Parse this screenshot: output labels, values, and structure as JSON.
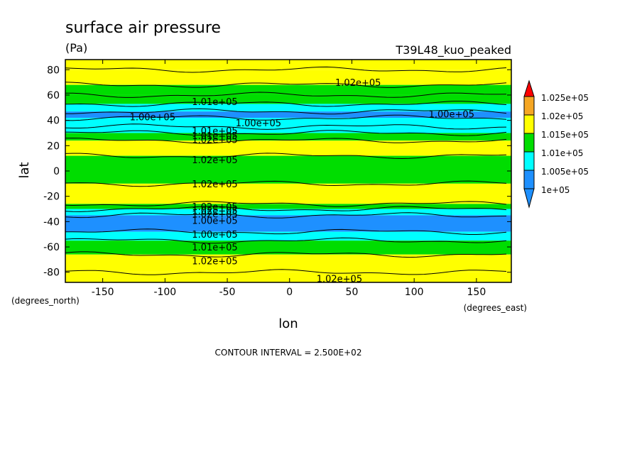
{
  "chart_data": {
    "type": "heatmap",
    "title": "surface air pressure",
    "units": "(Pa)",
    "run_label": "T39L48_kuo_peaked",
    "xlabel": "lon",
    "ylabel": "lat",
    "x_units": "(degrees_east)",
    "y_units": "(degrees_north)",
    "xlim": [
      -180,
      178
    ],
    "ylim": [
      -88,
      88
    ],
    "x_ticks": [
      -150,
      -100,
      -50,
      0,
      50,
      100,
      150
    ],
    "y_ticks": [
      80,
      60,
      40,
      20,
      0,
      -20,
      -40,
      -60,
      -80
    ],
    "x_tick_labels": [
      "-150",
      "-100",
      "-50",
      "0",
      "50",
      "100",
      "150"
    ],
    "y_tick_labels": [
      "80",
      "60",
      "40",
      "20",
      "0",
      "-20",
      "-40",
      "-60",
      "-80"
    ],
    "contour_interval_text": "CONTOUR INTERVAL = 2.500E+02",
    "colorbar": {
      "labels": [
        "1.025e+05",
        "1.02e+05",
        "1.015e+05",
        "1.01e+05",
        "1.005e+05",
        "1e+05"
      ],
      "colors": [
        "#f5a623",
        "#ffff00",
        "#00dd00",
        "#00ffff",
        "#1e90ff"
      ],
      "over_color": "#ff0000",
      "under_color": "#1e90ff"
    },
    "bands": [
      {
        "lat": 88,
        "dx": 0,
        "color": "#ffff00"
      },
      {
        "lat": 80,
        "dx": 0,
        "color": "#ffff00"
      },
      {
        "lat": 68,
        "dx": 0,
        "color": "#00dd00"
      },
      {
        "lat": 60,
        "dx": 0,
        "color": "#00dd00"
      },
      {
        "lat": 53,
        "dx": 0,
        "color": "#00ffff"
      },
      {
        "lat": 47,
        "dx": 0,
        "color": "#1e90ff"
      },
      {
        "lat": 42,
        "dx": 0,
        "color": "#00ffff"
      },
      {
        "lat": 35,
        "dx": 0,
        "color": "#00ffff"
      },
      {
        "lat": 30,
        "dx": 0,
        "color": "#00dd00"
      },
      {
        "lat": 24,
        "dx": 0,
        "color": "#ffff00"
      },
      {
        "lat": 12,
        "dx": 0,
        "color": "#00dd00"
      },
      {
        "lat": -10,
        "dx": 0,
        "color": "#ffff00"
      },
      {
        "lat": -26,
        "dx": 0,
        "color": "#00dd00"
      },
      {
        "lat": -30,
        "dx": 0,
        "color": "#00ffff"
      },
      {
        "lat": -35,
        "dx": 0,
        "color": "#1e90ff"
      },
      {
        "lat": -48,
        "dx": 0,
        "color": "#00ffff"
      },
      {
        "lat": -55,
        "dx": 0,
        "color": "#00dd00"
      },
      {
        "lat": -66,
        "dx": 0,
        "color": "#ffff00"
      },
      {
        "lat": -80,
        "dx": 0,
        "color": "#ffff00"
      }
    ],
    "contour_labels": [
      {
        "text": "1.02e+05",
        "lon": 55,
        "lat": 70
      },
      {
        "text": "1.01e+05",
        "lon": -60,
        "lat": 55
      },
      {
        "text": "1.00e+05",
        "lon": -110,
        "lat": 43
      },
      {
        "text": "1.00e+05",
        "lon": -25,
        "lat": 38
      },
      {
        "text": "1.00e+05",
        "lon": 130,
        "lat": 45
      },
      {
        "text": "1.01e+05",
        "lon": -60,
        "lat": 32
      },
      {
        "text": "1.01e+05",
        "lon": -60,
        "lat": 28
      },
      {
        "text": "1.02e+05",
        "lon": -60,
        "lat": 25
      },
      {
        "text": "1.02e+05",
        "lon": -60,
        "lat": 9
      },
      {
        "text": "1.02e+05",
        "lon": -60,
        "lat": -10
      },
      {
        "text": "1.02e+05",
        "lon": -60,
        "lat": -28
      },
      {
        "text": "1.02e+05",
        "lon": -60,
        "lat": -31
      },
      {
        "text": "1.02e+05",
        "lon": -60,
        "lat": -34
      },
      {
        "text": "1.00e+05",
        "lon": -60,
        "lat": -39
      },
      {
        "text": "1.00e+05",
        "lon": -60,
        "lat": -50
      },
      {
        "text": "1.01e+05",
        "lon": -60,
        "lat": -60
      },
      {
        "text": "1.02e+05",
        "lon": -60,
        "lat": -71
      },
      {
        "text": "1.02e+05",
        "lon": 40,
        "lat": -85
      }
    ]
  }
}
